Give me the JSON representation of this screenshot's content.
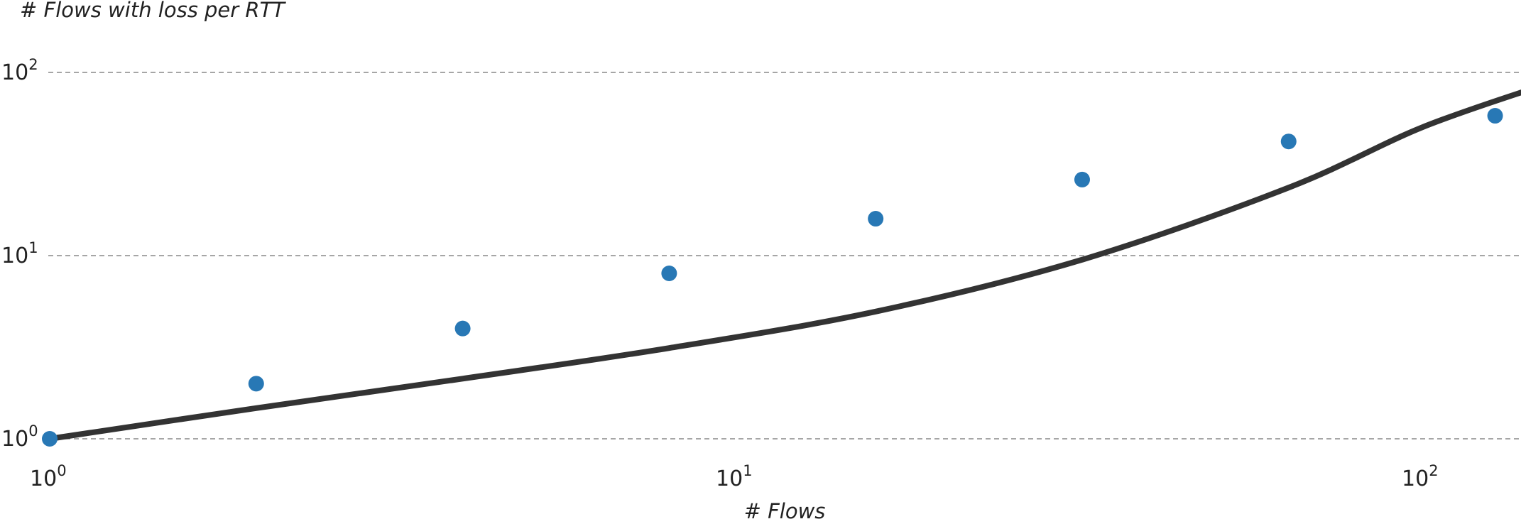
{
  "chart_data": {
    "type": "scatter",
    "ylabel": "# Flows with loss per RTT",
    "xlabel": "# Flows",
    "xscale": "log",
    "yscale": "log",
    "xlim": [
      1,
      150
    ],
    "ylim": [
      1,
      100
    ],
    "grid": "horizontal dashed",
    "x_ticks": [
      {
        "base": "10",
        "exp": "0",
        "value": 1
      },
      {
        "base": "10",
        "exp": "1",
        "value": 10
      },
      {
        "base": "10",
        "exp": "2",
        "value": 100
      }
    ],
    "y_ticks": [
      {
        "base": "10",
        "exp": "0",
        "value": 1
      },
      {
        "base": "10",
        "exp": "1",
        "value": 10
      },
      {
        "base": "10",
        "exp": "2",
        "value": 100
      }
    ],
    "series": [
      {
        "kind": "scatter",
        "color": "#2878b5",
        "points": [
          {
            "x": 1,
            "y": 1
          },
          {
            "x": 2,
            "y": 2
          },
          {
            "x": 4,
            "y": 4
          },
          {
            "x": 8,
            "y": 8
          },
          {
            "x": 16,
            "y": 15.9
          },
          {
            "x": 32,
            "y": 26
          },
          {
            "x": 64,
            "y": 42
          },
          {
            "x": 128,
            "y": 58
          }
        ]
      },
      {
        "kind": "line",
        "color": "#333333",
        "points": [
          {
            "x": 1,
            "y": 1.0
          },
          {
            "x": 2,
            "y": 1.47
          },
          {
            "x": 4,
            "y": 2.13
          },
          {
            "x": 8,
            "y": 3.13
          },
          {
            "x": 16,
            "y": 4.95
          },
          {
            "x": 32,
            "y": 9.5
          },
          {
            "x": 64,
            "y": 23.5
          },
          {
            "x": 100,
            "y": 50
          },
          {
            "x": 150,
            "y": 85
          }
        ]
      }
    ]
  }
}
